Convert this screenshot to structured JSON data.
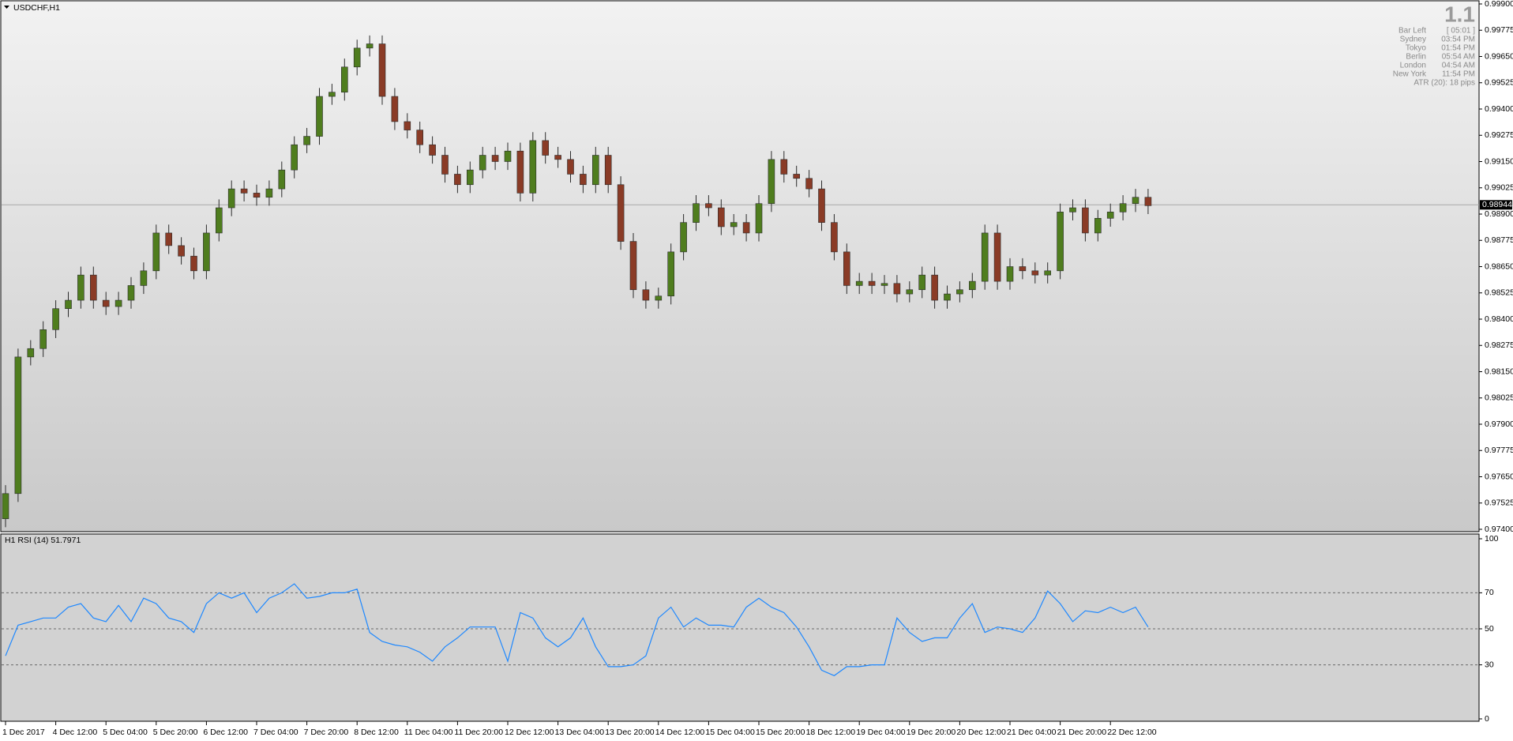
{
  "chart_data": [
    {
      "type": "candlestick",
      "title": "USDCHF,H1",
      "categories": [
        "1 Dec 2017",
        null,
        null,
        null,
        "4 Dec 12:00",
        null,
        null,
        null,
        "5 Dec 04:00",
        null,
        null,
        null,
        "5 Dec 20:00",
        null,
        null,
        null,
        "6 Dec 12:00",
        null,
        null,
        null,
        "7 Dec 04:00",
        null,
        null,
        null,
        "7 Dec 20:00",
        null,
        null,
        null,
        "8 Dec 12:00",
        null,
        null,
        null,
        "11 Dec 04:00",
        null,
        null,
        null,
        "11 Dec 20:00",
        null,
        null,
        null,
        "12 Dec 12:00",
        null,
        null,
        null,
        "13 Dec 04:00",
        null,
        null,
        null,
        "13 Dec 20:00",
        null,
        null,
        null,
        "14 Dec 12:00",
        null,
        null,
        null,
        "15 Dec 04:00",
        null,
        null,
        null,
        "15 Dec 20:00",
        null,
        null,
        null,
        "18 Dec 12:00",
        null,
        null,
        null,
        "19 Dec 04:00",
        null,
        null,
        null,
        "19 Dec 20:00",
        null,
        null,
        null,
        "20 Dec 12:00",
        null,
        null,
        null,
        "21 Dec 04:00",
        null,
        null,
        null,
        "21 Dec 20:00",
        null,
        null,
        null,
        "22 Dec 12:00",
        null,
        null,
        null
      ],
      "open": [
        0.9745,
        0.9757,
        0.9822,
        0.9826,
        0.9835,
        0.9845,
        0.9849,
        0.9861,
        0.9849,
        0.9846,
        0.9849,
        0.9856,
        0.9863,
        0.9881,
        0.9875,
        0.987,
        0.9863,
        0.9881,
        0.9893,
        0.9902,
        0.99,
        0.9898,
        0.9902,
        0.9911,
        0.9923,
        0.9927,
        0.9946,
        0.9948,
        0.996,
        0.9969,
        0.9971,
        0.9946,
        0.9934,
        0.993,
        0.9923,
        0.9918,
        0.9909,
        0.9904,
        0.9911,
        0.9918,
        0.9915,
        0.992,
        0.99,
        0.9925,
        0.9918,
        0.9916,
        0.9909,
        0.9904,
        0.9918,
        0.9904,
        0.9877,
        0.9854,
        0.9849,
        0.9851,
        0.9872,
        0.9886,
        0.9895,
        0.9893,
        0.9884,
        0.9886,
        0.9881,
        0.9895,
        0.9916,
        0.9909,
        0.9907,
        0.9902,
        0.9886,
        0.9872,
        0.9856,
        0.9858,
        0.9856,
        0.9857,
        0.9852,
        0.9854,
        0.9861,
        0.9849,
        0.9852,
        0.9854,
        0.9858,
        0.9881,
        0.9858,
        0.9865,
        0.9863,
        0.9861,
        0.9863,
        0.9891,
        0.9893,
        0.9881,
        0.9888,
        0.9891,
        0.9895,
        0.9898
      ],
      "high": [
        0.9761,
        0.9826,
        0.983,
        0.9839,
        0.9849,
        0.9853,
        0.9865,
        0.9865,
        0.9853,
        0.9853,
        0.986,
        0.9867,
        0.9885,
        0.9885,
        0.9879,
        0.9874,
        0.9885,
        0.9897,
        0.9906,
        0.9906,
        0.9904,
        0.9906,
        0.9915,
        0.9927,
        0.9931,
        0.995,
        0.9952,
        0.9964,
        0.9973,
        0.9975,
        0.9975,
        0.995,
        0.9938,
        0.9934,
        0.9927,
        0.9922,
        0.9913,
        0.9915,
        0.9922,
        0.9922,
        0.9924,
        0.9924,
        0.9929,
        0.9929,
        0.9922,
        0.992,
        0.9913,
        0.9922,
        0.9922,
        0.9908,
        0.9881,
        0.9858,
        0.9855,
        0.9876,
        0.989,
        0.9899,
        0.9899,
        0.9897,
        0.989,
        0.989,
        0.9899,
        0.992,
        0.992,
        0.9913,
        0.9911,
        0.9906,
        0.989,
        0.9876,
        0.9862,
        0.9862,
        0.9861,
        0.9861,
        0.9858,
        0.9865,
        0.9865,
        0.9856,
        0.9858,
        0.9862,
        0.9885,
        0.9885,
        0.9869,
        0.9869,
        0.9867,
        0.9867,
        0.9895,
        0.9897,
        0.9897,
        0.9892,
        0.9895,
        0.9899,
        0.9902,
        0.9902
      ],
      "low": [
        0.9741,
        0.9753,
        0.9818,
        0.9822,
        0.9831,
        0.9841,
        0.9845,
        0.9845,
        0.9842,
        0.9842,
        0.9845,
        0.9852,
        0.9859,
        0.9871,
        0.9866,
        0.9859,
        0.9859,
        0.9877,
        0.9889,
        0.9896,
        0.9894,
        0.9894,
        0.9898,
        0.9907,
        0.9919,
        0.9923,
        0.9942,
        0.9944,
        0.9956,
        0.9965,
        0.9942,
        0.993,
        0.9926,
        0.9919,
        0.9914,
        0.9905,
        0.99,
        0.99,
        0.9907,
        0.9911,
        0.9911,
        0.9896,
        0.9896,
        0.9914,
        0.9912,
        0.9905,
        0.99,
        0.99,
        0.99,
        0.9873,
        0.985,
        0.9845,
        0.9845,
        0.9847,
        0.9868,
        0.9882,
        0.9889,
        0.988,
        0.988,
        0.9877,
        0.9877,
        0.9891,
        0.9905,
        0.9903,
        0.9898,
        0.9882,
        0.9868,
        0.9852,
        0.9852,
        0.9852,
        0.9852,
        0.9848,
        0.9848,
        0.985,
        0.9845,
        0.9845,
        0.9848,
        0.985,
        0.9854,
        0.9854,
        0.9854,
        0.9859,
        0.9857,
        0.9857,
        0.9859,
        0.9887,
        0.9877,
        0.9877,
        0.9884,
        0.9887,
        0.9891,
        0.989
      ],
      "close": [
        0.9757,
        0.9822,
        0.9826,
        0.9835,
        0.9845,
        0.9849,
        0.9861,
        0.9849,
        0.9846,
        0.9849,
        0.9856,
        0.9863,
        0.9881,
        0.9875,
        0.987,
        0.9863,
        0.9881,
        0.9893,
        0.9902,
        0.99,
        0.9898,
        0.9902,
        0.9911,
        0.9923,
        0.9927,
        0.9946,
        0.9948,
        0.996,
        0.9969,
        0.9971,
        0.9946,
        0.9934,
        0.993,
        0.9923,
        0.9918,
        0.9909,
        0.9904,
        0.9911,
        0.9918,
        0.9915,
        0.992,
        0.99,
        0.9925,
        0.9918,
        0.9916,
        0.9909,
        0.9904,
        0.9918,
        0.9904,
        0.9877,
        0.9854,
        0.9849,
        0.9851,
        0.9872,
        0.9886,
        0.9895,
        0.9893,
        0.9884,
        0.9886,
        0.9881,
        0.9895,
        0.9916,
        0.9909,
        0.9907,
        0.9902,
        0.9886,
        0.9872,
        0.9856,
        0.9858,
        0.9856,
        0.9857,
        0.9852,
        0.9854,
        0.9861,
        0.9849,
        0.9852,
        0.9854,
        0.9858,
        0.9881,
        0.9858,
        0.9865,
        0.9863,
        0.9861,
        0.9863,
        0.9891,
        0.9893,
        0.9881,
        0.9888,
        0.9891,
        0.9895,
        0.9898,
        0.9894
      ],
      "up_color": "#4f7d1e",
      "down_color": "#8a3b26",
      "ylim": [
        0.974,
        0.999
      ],
      "yticks": [
        {
          "value": 0.999,
          "label": "0.99900"
        },
        {
          "value": 0.99775,
          "label": "0.99775"
        },
        {
          "value": 0.9965,
          "label": "0.99650"
        },
        {
          "value": 0.99525,
          "label": "0.99525"
        },
        {
          "value": 0.994,
          "label": "0.99400"
        },
        {
          "value": 0.99275,
          "label": "0.99275"
        },
        {
          "value": 0.9915,
          "label": "0.99150"
        },
        {
          "value": 0.99025,
          "label": "0.99025"
        },
        {
          "value": 0.989,
          "label": "0.98900"
        },
        {
          "value": 0.98775,
          "label": "0.98775"
        },
        {
          "value": 0.9865,
          "label": "0.98650"
        },
        {
          "value": 0.98525,
          "label": "0.98525"
        },
        {
          "value": 0.984,
          "label": "0.98400"
        },
        {
          "value": 0.98275,
          "label": "0.98275"
        },
        {
          "value": 0.9815,
          "label": "0.98150"
        },
        {
          "value": 0.98025,
          "label": "0.98025"
        },
        {
          "value": 0.979,
          "label": "0.97900"
        },
        {
          "value": 0.97775,
          "label": "0.97775"
        },
        {
          "value": 0.9765,
          "label": "0.97650"
        },
        {
          "value": 0.97525,
          "label": "0.97525"
        },
        {
          "value": 0.974,
          "label": "0.97400"
        }
      ],
      "current_price": {
        "value": 0.98944,
        "label": "0.98944"
      },
      "info": {
        "big": "1.1",
        "rows": [
          [
            "Bar Left",
            "[ 05:01 ]"
          ],
          [
            "Sydney",
            "03:54 PM"
          ],
          [
            "Tokyo",
            "01:54 PM"
          ],
          [
            "Berlin",
            "05:54 AM"
          ],
          [
            "London",
            "04:54 AM"
          ],
          [
            "New York",
            "11:54 PM"
          ]
        ],
        "atr": "ATR (20): 18 pips"
      }
    },
    {
      "type": "line",
      "title": "H1 RSI (14) 51.7971",
      "color": "#1e88ff",
      "values": [
        35,
        52,
        54,
        56,
        56,
        62,
        64,
        56,
        54,
        63,
        54,
        67,
        64,
        56,
        54,
        48,
        64,
        70,
        67,
        70,
        59,
        67,
        70,
        75,
        67,
        68,
        70,
        70,
        72,
        48,
        43,
        41,
        40,
        37,
        32,
        40,
        45,
        51,
        51,
        51,
        32,
        59,
        56,
        45,
        40,
        45,
        56,
        40,
        29,
        29,
        30,
        35,
        56,
        62,
        51,
        56,
        52,
        52,
        51,
        62,
        67,
        62,
        59,
        51,
        40,
        27,
        24,
        29,
        29,
        30,
        30,
        56,
        48,
        43,
        45,
        45,
        56,
        64,
        48,
        51,
        50,
        48,
        56,
        71,
        64,
        54,
        60,
        59,
        62,
        59,
        62,
        51
      ],
      "ylim": [
        0,
        100
      ],
      "yticks": [
        0,
        30,
        50,
        70,
        100
      ],
      "levels": [
        30,
        50,
        70
      ]
    }
  ]
}
